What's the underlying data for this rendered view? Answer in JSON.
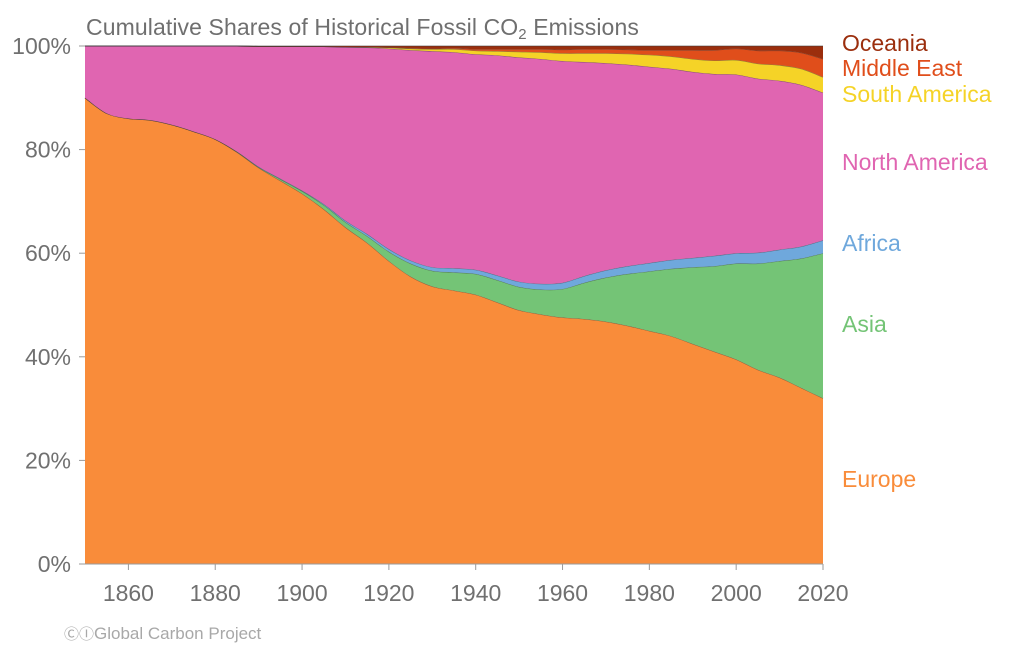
{
  "title_main": "Cumulative Shares of Historical Fossil CO",
  "title_sub": "2",
  "title_tail": " Emissions",
  "credit": {
    "icons": "ⒸⒾ",
    "text": "Global Carbon Project"
  },
  "chart_data": {
    "type": "area",
    "stacked": true,
    "title": "Cumulative Shares of Historical Fossil CO2 Emissions",
    "xlabel": "",
    "ylabel": "",
    "xlim": [
      1850,
      2020
    ],
    "ylim": [
      0,
      100
    ],
    "x": [
      1850,
      1855,
      1860,
      1865,
      1870,
      1875,
      1880,
      1885,
      1890,
      1895,
      1900,
      1905,
      1910,
      1915,
      1920,
      1925,
      1930,
      1935,
      1940,
      1945,
      1950,
      1955,
      1960,
      1965,
      1970,
      1975,
      1980,
      1985,
      1990,
      1995,
      2000,
      2005,
      2010,
      2015,
      2020
    ],
    "x_ticks": [
      "1860",
      "1880",
      "1900",
      "1920",
      "1940",
      "1960",
      "1980",
      "2000",
      "2020"
    ],
    "y_ticks": [
      "0%",
      "20%",
      "40%",
      "60%",
      "80%",
      "100%"
    ],
    "grid": false,
    "legend": "right-side labels",
    "series": [
      {
        "name": "Europe",
        "color": "#f98c3a",
        "values": [
          90.0,
          87.0,
          86.0,
          85.7,
          84.8,
          83.5,
          82.0,
          79.5,
          76.5,
          74.0,
          71.5,
          68.5,
          65.0,
          62.0,
          58.5,
          55.5,
          53.6,
          52.8,
          52.0,
          50.5,
          49.0,
          48.2,
          47.6,
          47.3,
          46.8,
          46.0,
          45.0,
          44.0,
          42.5,
          41.0,
          39.5,
          37.5,
          36.0,
          34.0,
          32.0
        ]
      },
      {
        "name": "Asia",
        "color": "#74c476",
        "values": [
          0.0,
          0.0,
          0.0,
          0.0,
          0.0,
          0.0,
          0.0,
          0.1,
          0.1,
          0.3,
          0.5,
          0.8,
          1.0,
          1.3,
          1.8,
          2.5,
          3.0,
          3.5,
          4.0,
          4.3,
          4.5,
          4.8,
          5.5,
          7.0,
          8.5,
          10.0,
          11.5,
          13.0,
          14.8,
          16.5,
          18.5,
          20.5,
          22.5,
          25.0,
          28.0
        ]
      },
      {
        "name": "Africa",
        "color": "#6fa8dc",
        "values": [
          0.0,
          0.0,
          0.0,
          0.0,
          0.0,
          0.0,
          0.0,
          0.0,
          0.1,
          0.1,
          0.1,
          0.2,
          0.3,
          0.4,
          0.5,
          0.6,
          0.7,
          0.8,
          0.8,
          0.9,
          1.0,
          1.1,
          1.2,
          1.3,
          1.4,
          1.5,
          1.6,
          1.7,
          1.8,
          2.0,
          2.0,
          2.1,
          2.2,
          2.3,
          2.5
        ]
      },
      {
        "name": "North America",
        "color": "#e065b1",
        "values": [
          10.0,
          13.0,
          14.0,
          14.3,
          15.2,
          16.5,
          18.0,
          20.4,
          23.2,
          25.5,
          27.8,
          30.4,
          33.5,
          36.0,
          38.7,
          40.6,
          41.7,
          41.7,
          41.6,
          42.5,
          43.3,
          43.4,
          42.8,
          41.3,
          40.0,
          38.9,
          37.9,
          36.9,
          35.9,
          35.1,
          34.5,
          33.6,
          32.6,
          31.2,
          28.5
        ]
      },
      {
        "name": "South America",
        "color": "#f5d327",
        "values": [
          0.0,
          0.0,
          0.0,
          0.0,
          0.0,
          0.0,
          0.0,
          0.0,
          0.0,
          0.0,
          0.0,
          0.0,
          0.0,
          0.1,
          0.2,
          0.3,
          0.4,
          0.6,
          0.7,
          0.8,
          1.1,
          1.3,
          1.5,
          1.7,
          1.9,
          2.1,
          2.3,
          2.4,
          2.5,
          2.6,
          2.8,
          2.9,
          3.0,
          3.1,
          3.0
        ]
      },
      {
        "name": "Middle East",
        "color": "#e04e1b",
        "values": [
          0.0,
          0.0,
          0.0,
          0.0,
          0.0,
          0.0,
          0.0,
          0.0,
          0.0,
          0.0,
          0.0,
          0.0,
          0.0,
          0.0,
          0.0,
          0.1,
          0.1,
          0.2,
          0.3,
          0.4,
          0.5,
          0.6,
          0.7,
          0.8,
          0.8,
          0.8,
          0.9,
          1.2,
          1.7,
          2.0,
          2.2,
          2.5,
          2.8,
          3.1,
          3.5
        ]
      },
      {
        "name": "Oceania",
        "color": "#9b2e0d",
        "values": [
          0.0,
          0.0,
          0.0,
          0.0,
          0.0,
          0.0,
          0.0,
          0.0,
          0.1,
          0.1,
          0.1,
          0.1,
          0.2,
          0.2,
          0.3,
          0.4,
          0.5,
          0.4,
          0.6,
          0.6,
          0.6,
          0.6,
          0.7,
          0.6,
          0.6,
          0.7,
          0.8,
          0.8,
          0.8,
          0.8,
          0.5,
          0.9,
          0.9,
          1.3,
          2.5
        ]
      }
    ]
  },
  "labels": [
    {
      "name": "Oceania",
      "color": "#9b2e0d"
    },
    {
      "name": "Middle East",
      "color": "#e04e1b"
    },
    {
      "name": "South America",
      "color": "#f5d327"
    },
    {
      "name": "North America",
      "color": "#e065b1"
    },
    {
      "name": "Africa",
      "color": "#6fa8dc"
    },
    {
      "name": "Asia",
      "color": "#74c476"
    },
    {
      "name": "Europe",
      "color": "#f98c3a"
    }
  ]
}
